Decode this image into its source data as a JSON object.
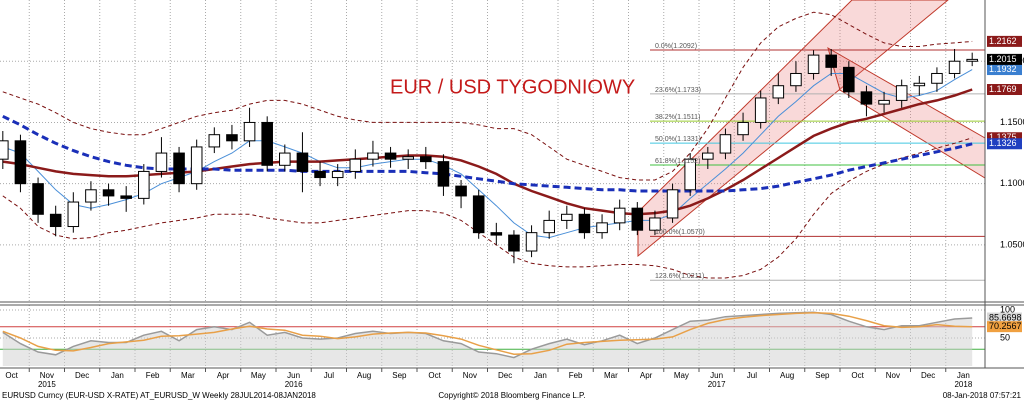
{
  "chart_data": [
    {
      "type": "candlestick",
      "annotation": "EUR / USD TYGODNIOWY",
      "categories": [
        "Oct",
        null,
        "Nov",
        null,
        "Dec",
        null,
        "Jan",
        null,
        "Feb",
        null,
        "Mar",
        null,
        "Apr",
        null,
        "May",
        null,
        "Jun",
        null,
        "Jul",
        null,
        "Aug",
        null,
        "Sep",
        null,
        "Oct",
        null,
        "Nov",
        null,
        "Dec",
        null,
        "Jan",
        null,
        "Feb",
        null,
        "Mar",
        null,
        "Apr",
        null,
        "May",
        null,
        "Jun",
        null,
        "Jul",
        null,
        "Aug",
        null,
        "Sep",
        null,
        "Oct",
        null,
        "Nov",
        null,
        "Dec",
        null,
        "Jan",
        null
      ],
      "category_years": [
        null,
        null,
        "2015",
        null,
        null,
        null,
        null,
        null,
        null,
        null,
        null,
        null,
        null,
        null,
        null,
        null,
        "2016",
        null,
        null,
        null,
        null,
        null,
        null,
        null,
        null,
        null,
        null,
        null,
        null,
        null,
        null,
        null,
        null,
        null,
        null,
        null,
        null,
        null,
        null,
        null,
        "2017",
        null,
        null,
        null,
        null,
        null,
        null,
        null,
        null,
        null,
        null,
        null,
        null,
        null,
        "2018",
        null
      ],
      "open": [
        1.12,
        1.135,
        1.1,
        1.075,
        1.065,
        1.085,
        1.095,
        1.09,
        1.088,
        1.11,
        1.125,
        1.1,
        1.13,
        1.14,
        1.135,
        1.15,
        1.115,
        1.125,
        1.11,
        1.105,
        1.11,
        1.12,
        1.125,
        1.12,
        1.122,
        1.118,
        1.098,
        1.09,
        1.06,
        1.058,
        1.045,
        1.06,
        1.07,
        1.075,
        1.06,
        1.068,
        1.08,
        1.062,
        1.072,
        1.095,
        1.12,
        1.125,
        1.14,
        1.15,
        1.17,
        1.18,
        1.19,
        1.205,
        1.195,
        1.175,
        1.165,
        1.168,
        1.18,
        1.182,
        1.19,
        1.2
      ],
      "high": [
        1.143,
        1.14,
        1.105,
        1.082,
        1.093,
        1.102,
        1.1,
        1.098,
        1.116,
        1.138,
        1.13,
        1.136,
        1.146,
        1.148,
        1.162,
        1.155,
        1.132,
        1.142,
        1.118,
        1.116,
        1.128,
        1.135,
        1.13,
        1.128,
        1.13,
        1.124,
        1.103,
        1.095,
        1.068,
        1.062,
        1.066,
        1.078,
        1.082,
        1.08,
        1.075,
        1.087,
        1.085,
        1.078,
        1.1,
        1.125,
        1.13,
        1.145,
        1.158,
        1.176,
        1.19,
        1.2,
        1.209,
        1.21,
        1.2,
        1.18,
        1.175,
        1.185,
        1.188,
        1.195,
        1.21,
        1.207
      ],
      "low": [
        1.112,
        1.093,
        1.068,
        1.057,
        1.06,
        1.078,
        1.082,
        1.077,
        1.083,
        1.105,
        1.093,
        1.095,
        1.125,
        1.128,
        1.13,
        1.11,
        1.11,
        1.093,
        1.098,
        1.098,
        1.104,
        1.114,
        1.113,
        1.112,
        1.112,
        1.09,
        1.08,
        1.055,
        1.05,
        1.035,
        1.04,
        1.055,
        1.063,
        1.055,
        1.055,
        1.062,
        1.058,
        1.058,
        1.068,
        1.09,
        1.112,
        1.12,
        1.135,
        1.145,
        1.165,
        1.175,
        1.185,
        1.188,
        1.17,
        1.155,
        1.158,
        1.162,
        1.172,
        1.175,
        1.186,
        1.196
      ],
      "close": [
        1.135,
        1.1,
        1.075,
        1.065,
        1.085,
        1.095,
        1.09,
        1.088,
        1.11,
        1.125,
        1.1,
        1.13,
        1.14,
        1.135,
        1.15,
        1.115,
        1.125,
        1.11,
        1.105,
        1.11,
        1.12,
        1.125,
        1.12,
        1.122,
        1.118,
        1.098,
        1.09,
        1.06,
        1.058,
        1.045,
        1.06,
        1.07,
        1.075,
        1.06,
        1.068,
        1.08,
        1.062,
        1.072,
        1.095,
        1.12,
        1.125,
        1.14,
        1.15,
        1.17,
        1.18,
        1.19,
        1.205,
        1.195,
        1.175,
        1.165,
        1.168,
        1.18,
        1.182,
        1.19,
        1.2,
        1.2015
      ],
      "close_label_color": "#000000",
      "series": [
        {
          "color": "#7a1010",
          "style": "dashed",
          "width": 1,
          "label_color": "#8b1a1a",
          "values": [
            1.175,
            1.17,
            1.165,
            1.158,
            1.15,
            1.145,
            1.142,
            1.14,
            1.14,
            1.145,
            1.15,
            1.155,
            1.158,
            1.16,
            1.165,
            1.168,
            1.168,
            1.165,
            1.16,
            1.155,
            1.152,
            1.15,
            1.15,
            1.15,
            1.15,
            1.15,
            1.15,
            1.148,
            1.145,
            1.145,
            1.14,
            1.13,
            1.12,
            1.115,
            1.11,
            1.105,
            1.103,
            1.103,
            1.11,
            1.125,
            1.145,
            1.17,
            1.195,
            1.215,
            1.228,
            1.235,
            1.24,
            1.238,
            1.23,
            1.222,
            1.215,
            1.212,
            1.212,
            1.214,
            1.215,
            1.2162
          ]
        },
        {
          "color": "#4a8fd8",
          "style": "solid",
          "width": 1,
          "label_color": "#3a7fd0",
          "values": [
            1.13,
            1.125,
            1.11,
            1.095,
            1.083,
            1.08,
            1.083,
            1.087,
            1.092,
            1.1,
            1.105,
            1.11,
            1.118,
            1.125,
            1.135,
            1.135,
            1.13,
            1.125,
            1.118,
            1.113,
            1.113,
            1.116,
            1.118,
            1.12,
            1.12,
            1.115,
            1.108,
            1.095,
            1.082,
            1.068,
            1.058,
            1.056,
            1.06,
            1.064,
            1.066,
            1.068,
            1.07,
            1.07,
            1.075,
            1.088,
            1.1,
            1.112,
            1.125,
            1.14,
            1.155,
            1.167,
            1.18,
            1.19,
            1.19,
            1.182,
            1.174,
            1.17,
            1.172,
            1.176,
            1.185,
            1.1932
          ]
        },
        {
          "color": "#8b1a1a",
          "style": "solid",
          "width": 2.5,
          "label_color": "#8b1a1a",
          "values": [
            1.118,
            1.116,
            1.113,
            1.11,
            1.108,
            1.107,
            1.106,
            1.106,
            1.107,
            1.108,
            1.109,
            1.11,
            1.112,
            1.114,
            1.116,
            1.117,
            1.118,
            1.118,
            1.118,
            1.119,
            1.12,
            1.121,
            1.122,
            1.123,
            1.123,
            1.122,
            1.119,
            1.114,
            1.108,
            1.1,
            1.094,
            1.089,
            1.084,
            1.08,
            1.078,
            1.076,
            1.075,
            1.076,
            1.078,
            1.082,
            1.088,
            1.095,
            1.103,
            1.112,
            1.121,
            1.13,
            1.139,
            1.145,
            1.15,
            1.153,
            1.157,
            1.161,
            1.165,
            1.168,
            1.172,
            1.1769
          ]
        },
        {
          "color": "#7a1010",
          "style": "dashed",
          "width": 1,
          "label_color": "#8b1a1a",
          "values": [
            1.09,
            1.08,
            1.065,
            1.058,
            1.055,
            1.056,
            1.06,
            1.062,
            1.065,
            1.068,
            1.07,
            1.072,
            1.075,
            1.075,
            1.075,
            1.072,
            1.07,
            1.068,
            1.068,
            1.07,
            1.072,
            1.074,
            1.076,
            1.078,
            1.078,
            1.076,
            1.07,
            1.06,
            1.05,
            1.04,
            1.035,
            1.033,
            1.032,
            1.032,
            1.033,
            1.034,
            1.034,
            1.033,
            1.03,
            1.025,
            1.023,
            1.023,
            1.025,
            1.03,
            1.04,
            1.055,
            1.075,
            1.092,
            1.102,
            1.11,
            1.116,
            1.121,
            1.125,
            1.129,
            1.133,
            1.1375
          ]
        },
        {
          "color": "#1a2fb8",
          "style": "dashed",
          "width": 3,
          "label_color": "#2040c0",
          "values": [
            1.155,
            1.148,
            1.14,
            1.133,
            1.127,
            1.122,
            1.118,
            1.115,
            1.113,
            1.112,
            1.112,
            1.112,
            1.112,
            1.111,
            1.111,
            1.111,
            1.111,
            1.11,
            1.11,
            1.11,
            1.11,
            1.11,
            1.11,
            1.11,
            1.109,
            1.108,
            1.106,
            1.104,
            1.102,
            1.1,
            1.099,
            1.098,
            1.097,
            1.096,
            1.095,
            1.095,
            1.094,
            1.094,
            1.094,
            1.094,
            1.094,
            1.094,
            1.095,
            1.096,
            1.098,
            1.101,
            1.104,
            1.107,
            1.111,
            1.114,
            1.117,
            1.12,
            1.123,
            1.126,
            1.129,
            1.1326
          ]
        }
      ],
      "fibonacci": [
        {
          "label": "0.0%(1.2092)",
          "value": 1.2092,
          "color": "#b03030"
        },
        {
          "label": "23.6%(1.1733)",
          "value": 1.1733,
          "color": "#b0b0b0"
        },
        {
          "label": "38.2%(1.1511)",
          "value": 1.1511,
          "color": "#9acd32"
        },
        {
          "label": "50.0%(1.1331)",
          "value": 1.1331,
          "color": "#40c8e0"
        },
        {
          "label": "61.8%(1.1152)",
          "value": 1.1152,
          "color": "#40c040"
        },
        {
          "label": "100.0%(1.0570)",
          "value": 1.057,
          "color": "#b03030"
        },
        {
          "label": "123.6%(1.0211)",
          "value": 1.0211,
          "color": "#b0b0b0"
        }
      ],
      "ylim": [
        1.005,
        1.25
      ],
      "yticks": [
        {
          "value": 1.05,
          "label": "1.0500"
        },
        {
          "value": 1.1,
          "label": "1.1000"
        },
        {
          "value": 1.15,
          "label": "1.1500"
        },
        {
          "value": 1.2,
          "label": "1.2000"
        }
      ],
      "grid": true
    },
    {
      "type": "oscillator",
      "series": [
        {
          "color": "#9a9a9a",
          "fill": "#cfcfcf",
          "label_color": "#d8d8d8",
          "values": [
            60,
            40,
            25,
            20,
            35,
            45,
            42,
            42,
            55,
            62,
            45,
            65,
            70,
            65,
            78,
            55,
            60,
            50,
            48,
            50,
            58,
            62,
            58,
            60,
            58,
            45,
            40,
            25,
            22,
            15,
            30,
            40,
            48,
            38,
            45,
            55,
            40,
            50,
            65,
            80,
            82,
            88,
            90,
            92,
            94,
            95,
            96,
            92,
            80,
            70,
            65,
            72,
            72,
            78,
            84,
            85.6698
          ]
        },
        {
          "color": "#e8a048",
          "label_color": "#f0a040",
          "values": [
            62,
            50,
            35,
            28,
            27,
            33,
            40,
            43,
            46,
            53,
            54,
            57,
            60,
            66,
            71,
            66,
            64,
            55,
            53,
            49,
            52,
            57,
            59,
            60,
            59,
            54,
            48,
            37,
            29,
            21,
            22,
            28,
            39,
            42,
            44,
            46,
            47,
            48,
            52,
            65,
            76,
            83,
            87,
            90,
            92,
            94,
            95,
            94,
            89,
            81,
            72,
            69,
            70,
            74,
            71,
            70.2567
          ]
        }
      ],
      "levels": [
        {
          "value": 70,
          "color": "#d04040"
        },
        {
          "value": 30,
          "color": "#40b040"
        }
      ],
      "ylim": [
        0,
        100
      ],
      "yticks": [
        50,
        100
      ],
      "grid": true
    }
  ],
  "footer": {
    "left": "EURUSD Curncy (EUR-USD X-RATE) AT_EURUSD_W  Weekly 28JUL2014-08JAN2018",
    "center": "Copyright© 2018 Bloomberg Finance L.P.",
    "right": "08-Jan-2018 07:57:21"
  }
}
